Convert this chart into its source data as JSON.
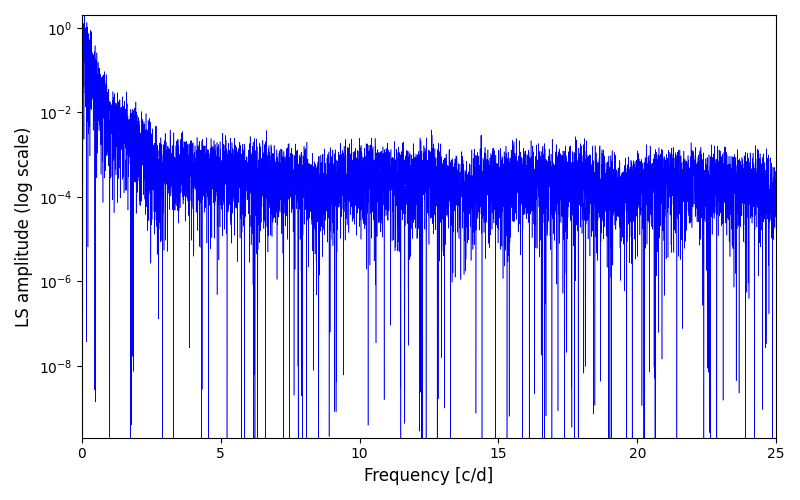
{
  "xlabel": "Frequency [c/d]",
  "ylabel": "LS amplitude (log scale)",
  "xlim": [
    0,
    25
  ],
  "ylim_bottom": 2e-10,
  "ylim_top": 2.0,
  "yticks": [
    1e-08,
    1e-06,
    0.0001,
    0.01,
    1.0
  ],
  "line_color": "#0000ff",
  "line_width": 0.4,
  "figsize": [
    8.0,
    5.0
  ],
  "dpi": 100,
  "freq_max": 25.0,
  "n_points": 8000,
  "seed": 7
}
